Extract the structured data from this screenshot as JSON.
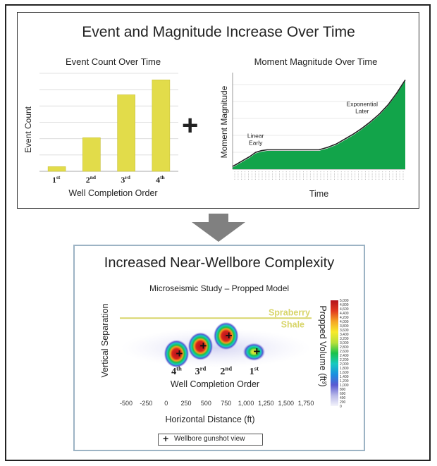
{
  "top_panel": {
    "title": "Event and Magnitude Increase Over Time",
    "plus_symbol": "+"
  },
  "bottom_panel": {
    "title": "Increased Near-Wellbore Complexity",
    "legend_symbol": "+",
    "legend_label": "Wellbore gunshot view"
  },
  "chart_data": [
    {
      "type": "bar",
      "title": "Event Count Over Time",
      "xlabel": "Well Completion Order",
      "ylabel": "Event Count",
      "categories": [
        {
          "base": "1",
          "sup": "st"
        },
        {
          "base": "2",
          "sup": "nd"
        },
        {
          "base": "3",
          "sup": "rd"
        },
        {
          "base": "4",
          "sup": "th"
        }
      ],
      "values": [
        0.5,
        3.6,
        8.2,
        9.8
      ],
      "ylim": [
        0,
        10.5
      ],
      "grid": true,
      "bar_color": "#e2dc4a"
    },
    {
      "type": "area",
      "title": "Moment Magnitude Over Time",
      "xlabel": "Time",
      "ylabel": "Moment Magnitude",
      "x": [
        0,
        2,
        4,
        6,
        8,
        10,
        12,
        15,
        18,
        21,
        24,
        27,
        30,
        33,
        36,
        39,
        42,
        45,
        48,
        51,
        54,
        57,
        60
      ],
      "values": [
        0.1,
        0.3,
        0.5,
        0.7,
        0.95,
        1.05,
        1.1,
        1.1,
        1.1,
        1.1,
        1.1,
        1.1,
        1.1,
        1.25,
        1.45,
        1.75,
        2.05,
        2.4,
        2.8,
        3.25,
        3.8,
        4.5,
        5.3
      ],
      "xlim": [
        0,
        60
      ],
      "ylim": [
        0,
        5.8
      ],
      "grid": true,
      "fill_color": "#12a44a",
      "annotations": [
        {
          "text_lines": [
            "Linear",
            "Early"
          ],
          "at_x": 8,
          "at_y": 1.3
        },
        {
          "text_lines": [
            "Exponential",
            "Later"
          ],
          "at_x": 45,
          "at_y": 3.2
        }
      ]
    },
    {
      "type": "heatmap",
      "title": "Microseismic Study – Propped Model",
      "xlabel": "Horizontal Distance (ft)",
      "ylabel": "Vertical Separation",
      "inner_xlabel": "Well Completion Order",
      "x_ticks": [
        "-500",
        "-250",
        "0",
        "250",
        "500",
        "750",
        "1,000",
        "1,250",
        "1,500",
        "1,750"
      ],
      "x_tick_values": [
        -500,
        -250,
        0,
        250,
        500,
        750,
        1000,
        1250,
        1500,
        1750
      ],
      "xlim": [
        -580,
        1820
      ],
      "ylim": [
        0,
        10
      ],
      "formation_lines": [
        {
          "label_lines": [
            "Spraberry",
            "Shale"
          ],
          "y": 7.8,
          "color": "#d8d56a"
        }
      ],
      "wells": [
        {
          "base": "4",
          "sup": "th",
          "x": 130,
          "y": 4.0,
          "intensity": 1.0
        },
        {
          "base": "3",
          "sup": "rd",
          "x": 430,
          "y": 4.8,
          "intensity": 0.9
        },
        {
          "base": "2",
          "sup": "nd",
          "x": 750,
          "y": 5.9,
          "intensity": 1.0
        },
        {
          "base": "1",
          "sup": "st",
          "x": 1100,
          "y": 4.2,
          "intensity": 0.55
        }
      ],
      "colorbar": {
        "label": "Propped Volume (ft³)",
        "min": 0,
        "max": 5000,
        "ticks": [
          "5,000",
          "4,800",
          "4,600",
          "4,400",
          "4,200",
          "4,000",
          "3,800",
          "3,600",
          "3,400",
          "3,200",
          "3,000",
          "2,800",
          "2,600",
          "2,400",
          "2,200",
          "2,000",
          "1,800",
          "1,600",
          "1,400",
          "1,200",
          "1,000",
          "800",
          "600",
          "400",
          "200",
          "0"
        ],
        "colors": [
          "#f4f4fb",
          "#b9b9e8",
          "#5a5ad2",
          "#1a8fe0",
          "#16c9c0",
          "#19c24a",
          "#b8e03a",
          "#f7ea2a",
          "#f5a623",
          "#e23a1f",
          "#b3121b"
        ]
      }
    }
  ]
}
